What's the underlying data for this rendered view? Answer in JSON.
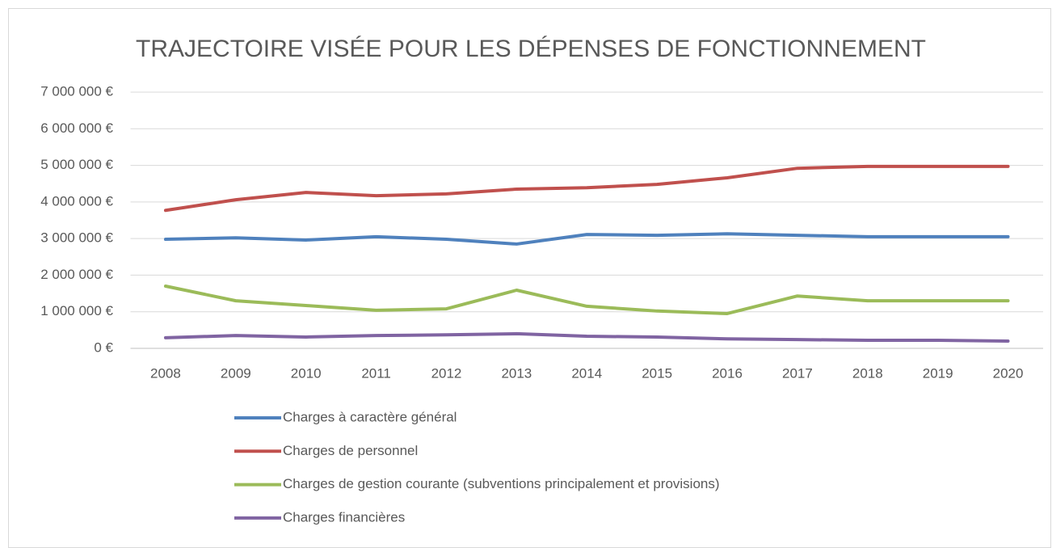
{
  "chart_data": {
    "type": "line",
    "title": "TRAJECTOIRE VISÉE POUR LES DÉPENSES DE FONCTIONNEMENT",
    "categories": [
      "2008",
      "2009",
      "2010",
      "2011",
      "2012",
      "2013",
      "2014",
      "2015",
      "2016",
      "2017",
      "2018",
      "2019",
      "2020"
    ],
    "series": [
      {
        "name": "Charges à caractère général",
        "color": "#4f81bd",
        "values": [
          2980000,
          3020000,
          2960000,
          3050000,
          2980000,
          2850000,
          3110000,
          3090000,
          3130000,
          3090000,
          3050000,
          3050000,
          3050000
        ]
      },
      {
        "name": "Charges de personnel",
        "color": "#c0504d",
        "values": [
          3770000,
          4060000,
          4260000,
          4170000,
          4220000,
          4350000,
          4390000,
          4480000,
          4660000,
          4920000,
          4970000,
          4970000,
          4970000
        ]
      },
      {
        "name": "Charges de gestion courante (subventions principalement et provisions)",
        "color": "#9bbb59",
        "values": [
          1700000,
          1300000,
          1170000,
          1040000,
          1080000,
          1590000,
          1150000,
          1020000,
          950000,
          1430000,
          1300000,
          1300000,
          1300000
        ]
      },
      {
        "name": "Charges financières",
        "color": "#8064a2",
        "values": [
          290000,
          350000,
          310000,
          350000,
          370000,
          400000,
          330000,
          310000,
          260000,
          240000,
          220000,
          220000,
          200000
        ]
      }
    ],
    "ylim": [
      0,
      7000000
    ],
    "yticks": [
      {
        "value": 0,
        "label": "0 €"
      },
      {
        "value": 1000000,
        "label": "1 000 000 €"
      },
      {
        "value": 2000000,
        "label": "2 000 000 €"
      },
      {
        "value": 3000000,
        "label": "3 000 000 €"
      },
      {
        "value": 4000000,
        "label": "4 000 000 €"
      },
      {
        "value": 5000000,
        "label": "5 000 000 €"
      },
      {
        "value": 6000000,
        "label": "6 000 000 €"
      },
      {
        "value": 7000000,
        "label": "7 000 000 €"
      }
    ],
    "grid": true,
    "legend": "bottom"
  }
}
